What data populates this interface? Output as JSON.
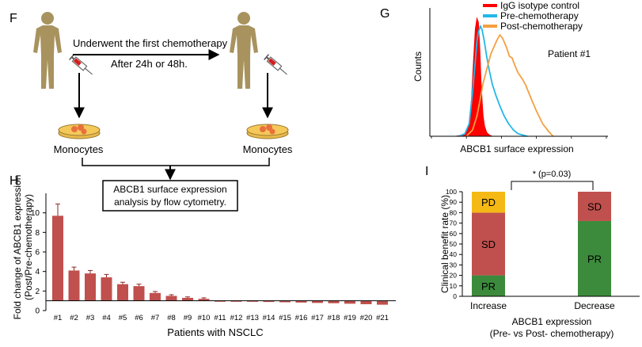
{
  "panels": {
    "F": {
      "letter": "F",
      "arrow_top": "Underwent the first chemotherapy",
      "arrow_bottom": "After 24h or 48h.",
      "left_label": "Monocytes",
      "right_label": "Monocytes",
      "box_line1": "ABCB1 surface expression",
      "box_line2": "analysis by flow cytometry."
    },
    "G": {
      "letter": "G",
      "annotation": "Patient #1"
    },
    "H": {
      "letter": "H"
    },
    "I": {
      "letter": "I"
    }
  },
  "colors": {
    "figure": "#a8925e",
    "bar_h": "#c0504d",
    "igg": "#ff0000",
    "pre": "#22b8e8",
    "post": "#f4a040",
    "pd": "#f5b915",
    "sd": "#c0504d",
    "pr": "#3c8b3c",
    "dish": "#f5c85a",
    "cells": "#e8703c"
  },
  "chart_data": [
    {
      "id": "G",
      "type": "line",
      "xlabel": "ABCB1 surface expression",
      "ylabel": "Counts",
      "xscale": "log",
      "xlim": [
        1,
        100000
      ],
      "ylim": [
        0,
        1
      ],
      "x_ticks": [
        1,
        10,
        100,
        1000,
        10000,
        100000
      ],
      "legend_position": "top-right",
      "series": [
        {
          "name": "IgG isotype control",
          "style": "filled",
          "x": [
            5,
            8,
            10,
            12,
            14,
            16,
            18,
            20,
            22,
            24,
            26,
            28,
            30,
            33,
            38,
            45,
            55
          ],
          "y": [
            0,
            0.01,
            0.03,
            0.1,
            0.3,
            0.6,
            0.85,
            0.93,
            0.9,
            0.7,
            0.45,
            0.28,
            0.16,
            0.08,
            0.03,
            0.01,
            0
          ]
        },
        {
          "name": "Pre-chemotherapy",
          "style": "line",
          "x": [
            6,
            9,
            12,
            15,
            18,
            20,
            22,
            25,
            28,
            32,
            38,
            45,
            55,
            70,
            90,
            120,
            160,
            220,
            300,
            400,
            550
          ],
          "y": [
            0,
            0.02,
            0.1,
            0.35,
            0.6,
            0.75,
            0.82,
            0.87,
            0.84,
            0.76,
            0.63,
            0.52,
            0.41,
            0.32,
            0.24,
            0.16,
            0.1,
            0.05,
            0.02,
            0.01,
            0
          ]
        },
        {
          "name": "Post-chemotherapy",
          "style": "line",
          "x": [
            10,
            15,
            20,
            25,
            30,
            40,
            50,
            60,
            75,
            90,
            110,
            140,
            170,
            200,
            250,
            300,
            400,
            500,
            700,
            1000,
            1500,
            2200,
            3000
          ],
          "y": [
            0,
            0.05,
            0.16,
            0.3,
            0.42,
            0.55,
            0.65,
            0.7,
            0.76,
            0.8,
            0.77,
            0.7,
            0.63,
            0.62,
            0.55,
            0.5,
            0.45,
            0.4,
            0.3,
            0.2,
            0.1,
            0.04,
            0
          ]
        }
      ]
    },
    {
      "id": "H",
      "type": "bar",
      "xlabel": "Patients with NSCLC",
      "ylabel": [
        "Fold change of ABCB1 expression",
        "(Post/Pre-chemotherapy)"
      ],
      "ylim": [
        0,
        12
      ],
      "y_ticks": [
        0,
        2,
        4,
        6,
        8,
        10
      ],
      "baseline": 1,
      "categories": [
        "#1",
        "#2",
        "#3",
        "#4",
        "#5",
        "#6",
        "#7",
        "#8",
        "#9",
        "#10",
        "#11",
        "#12",
        "#13",
        "#14",
        "#15",
        "#16",
        "#17",
        "#18",
        "#19",
        "#20",
        "#21"
      ],
      "values": [
        9.7,
        4.1,
        3.8,
        3.4,
        2.7,
        2.5,
        1.8,
        1.5,
        1.3,
        1.2,
        0.95,
        0.92,
        0.9,
        0.88,
        0.85,
        0.82,
        0.78,
        0.75,
        0.7,
        0.65,
        0.6
      ],
      "errors": [
        1.2,
        0.35,
        0.3,
        0.3,
        0.2,
        0.2,
        0.15,
        0.12,
        0.1,
        0.1,
        0,
        0,
        0,
        0,
        0,
        0,
        0,
        0,
        0,
        0,
        0
      ]
    },
    {
      "id": "I",
      "type": "bar",
      "stacked": true,
      "ylabel": "Clinical benefit rate (%)",
      "xlabel": [
        "ABCB1 expression",
        "(Pre- vs Post- chemotherapy)"
      ],
      "ylim": [
        0,
        100
      ],
      "y_ticks": [
        0,
        10,
        20,
        30,
        40,
        50,
        60,
        70,
        80,
        90,
        100
      ],
      "categories": [
        "Increase",
        "Decrease"
      ],
      "series": [
        {
          "name": "PR",
          "values": [
            20,
            72
          ]
        },
        {
          "name": "SD",
          "values": [
            60,
            28
          ]
        },
        {
          "name": "PD",
          "values": [
            20,
            0
          ]
        }
      ],
      "significance": "* (p=0.03)"
    }
  ]
}
